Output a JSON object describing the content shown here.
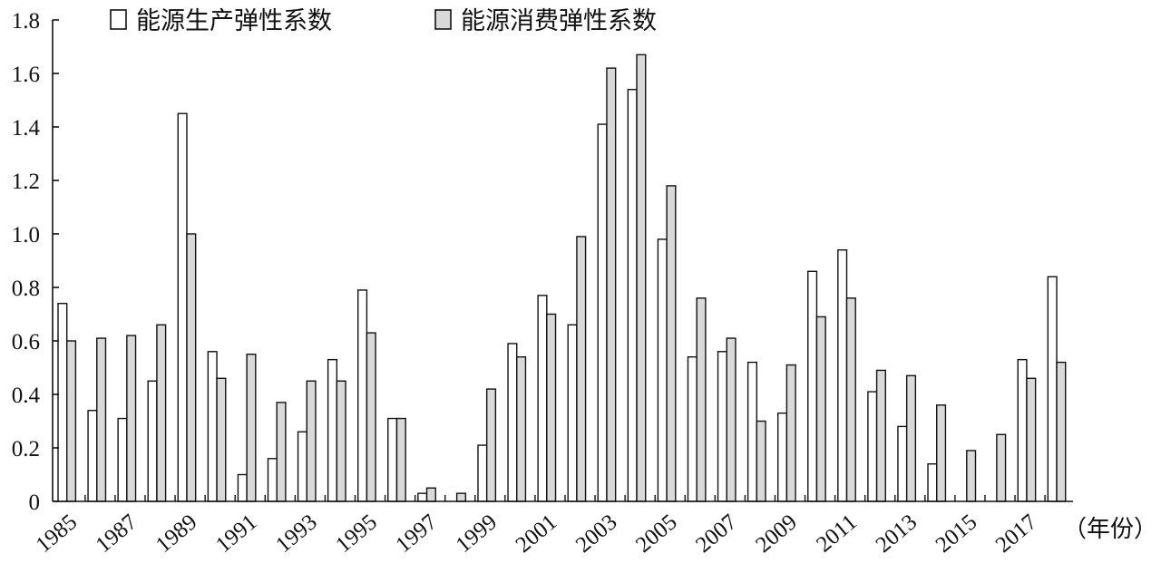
{
  "chart_data": {
    "type": "bar",
    "categories": [
      "1985",
      "1986",
      "1987",
      "1988",
      "1989",
      "1990",
      "1991",
      "1992",
      "1993",
      "1994",
      "1995",
      "1996",
      "1997",
      "1998",
      "1999",
      "2000",
      "2001",
      "2002",
      "2003",
      "2004",
      "2005",
      "2006",
      "2007",
      "2008",
      "2009",
      "2010",
      "2011",
      "2012",
      "2013",
      "2014",
      "2015",
      "2016",
      "2017",
      "2018"
    ],
    "x_tick_labels": [
      "1985",
      "1987",
      "1989",
      "1991",
      "1993",
      "1995",
      "1997",
      "1999",
      "2001",
      "2003",
      "2005",
      "2007",
      "2009",
      "2011",
      "2013",
      "2015",
      "2017"
    ],
    "y_tick_labels": [
      "0",
      "0.2",
      "0.4",
      "0.6",
      "0.8",
      "1.0",
      "1.2",
      "1.4",
      "1.6",
      "1.8"
    ],
    "ylim": [
      0,
      1.8
    ],
    "unit_label": "（年份）",
    "legend_position": "top-left",
    "grid": false,
    "series": [
      {
        "name": "能源生产弹性系数",
        "color": "#ffffff",
        "values": [
          0.74,
          0.34,
          0.31,
          0.45,
          1.45,
          0.56,
          0.1,
          0.16,
          0.26,
          0.53,
          0.79,
          0.31,
          0.03,
          0.0,
          0.21,
          0.59,
          0.77,
          0.66,
          1.41,
          1.54,
          0.98,
          0.54,
          0.56,
          0.52,
          0.33,
          0.86,
          0.94,
          0.41,
          0.28,
          0.14,
          0.0,
          0.0,
          0.53,
          0.84
        ]
      },
      {
        "name": "能源消费弹性系数",
        "color": "#d9d9d9",
        "values": [
          0.6,
          0.61,
          0.62,
          0.66,
          1.0,
          0.46,
          0.55,
          0.37,
          0.45,
          0.45,
          0.63,
          0.31,
          0.05,
          0.03,
          0.42,
          0.54,
          0.7,
          0.99,
          1.62,
          1.67,
          1.18,
          0.76,
          0.61,
          0.3,
          0.51,
          0.69,
          0.76,
          0.49,
          0.47,
          0.36,
          0.19,
          0.25,
          0.46,
          0.52
        ]
      }
    ]
  }
}
